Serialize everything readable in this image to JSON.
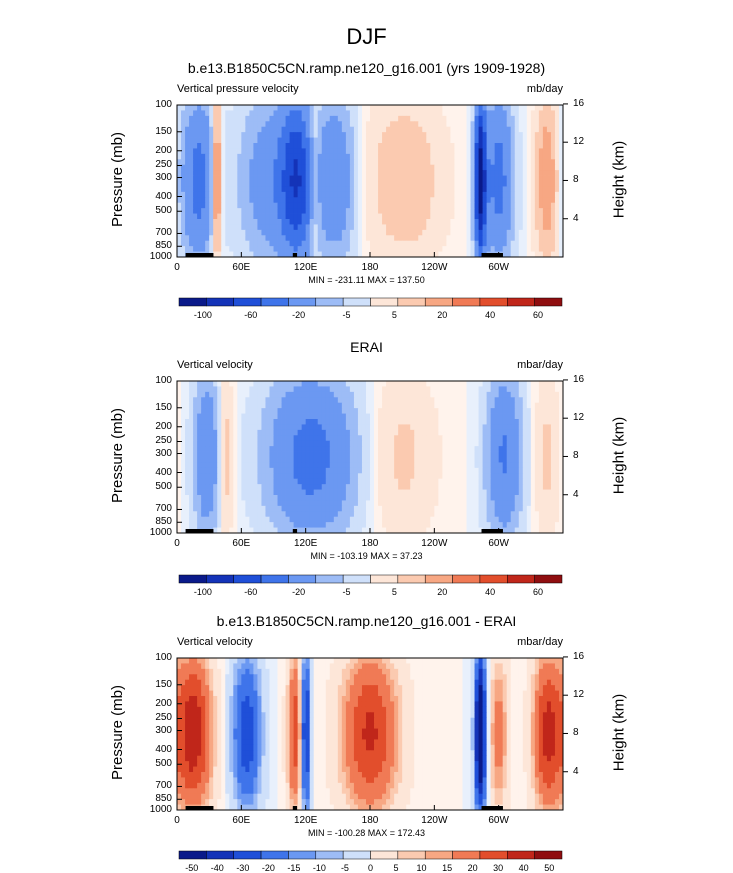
{
  "title": "DJF",
  "panels": [
    {
      "title": "b.e13.B1850C5CN.ramp.ne120_g16.001 (yrs 1909-1928)",
      "left_label": "Vertical pressure velocity",
      "right_label": "mb/day",
      "minmax_text": "MIN = -231.11  MAX = 137.50",
      "colorbar_labels": [
        "-100",
        "-60",
        "-20",
        "-5",
        "5",
        "20",
        "40",
        "60"
      ],
      "cmap": "full",
      "key": "model"
    },
    {
      "title": "ERAI",
      "left_label": "Vertical velocity",
      "right_label": "mbar/day",
      "minmax_text": "MIN = -103.19  MAX =  37.23",
      "colorbar_labels": [
        "-100",
        "-60",
        "-20",
        "-5",
        "5",
        "20",
        "40",
        "60"
      ],
      "cmap": "full",
      "key": "obs"
    },
    {
      "title": "b.e13.B1850C5CN.ramp.ne120_g16.001 - ERAI",
      "left_label": "Vertical velocity",
      "right_label": "mbar/day",
      "minmax_text": "MIN = -100.28  MAX = 172.43",
      "colorbar_labels": [
        "-50",
        "-40",
        "-30",
        "-20",
        "-15",
        "-10",
        "-5",
        "0",
        "5",
        "10",
        "15",
        "20",
        "30",
        "40",
        "50"
      ],
      "cmap": "diff",
      "key": "diff"
    }
  ],
  "axes": {
    "y_label": "Pressure (mb)",
    "y2_label": "Height (km)",
    "pressure_ticks": [
      "100",
      "150",
      "200",
      "250",
      "300",
      "400",
      "500",
      "700",
      "850",
      "1000"
    ],
    "height_ticks": [
      "16",
      "12",
      "8",
      "4"
    ],
    "x_ticks": [
      "0",
      "60E",
      "120E",
      "180",
      "120W",
      "60W"
    ]
  },
  "colors": {
    "blues": [
      "#0a1a8a",
      "#1433b8",
      "#1f4fd8",
      "#3f74ea",
      "#6b98f2",
      "#9dbcf6",
      "#cfe0fa"
    ],
    "reds": [
      "#fde6d8",
      "#fbcab0",
      "#f7a783",
      "#f07a55",
      "#e24e2c",
      "#c0261a",
      "#8f0e10"
    ],
    "land": "#000000"
  },
  "chart_data": [
    {
      "type": "heatmap",
      "title": "b.e13.B1850C5CN.ramp.ne120_g16.001 (yrs 1909-1928)",
      "variable": "Vertical pressure velocity",
      "units": "mb/day",
      "xlabel": "",
      "ylabel": "Pressure (mb)",
      "y2label": "Height (km)",
      "x_ticks": [
        "0",
        "60E",
        "120E",
        "180",
        "120W",
        "60W"
      ],
      "y_ticks": [
        100,
        150,
        200,
        250,
        300,
        400,
        500,
        700,
        850,
        1000
      ],
      "y_log": true,
      "min": -231.11,
      "max": 137.5,
      "levels": [
        -100,
        -80,
        -60,
        -40,
        -20,
        -10,
        -5,
        0,
        5,
        10,
        20,
        30,
        40,
        50,
        60
      ],
      "features": [
        {
          "lon": 20,
          "width": 18,
          "value": -40
        },
        {
          "lon": 37,
          "width": 5,
          "value": 40
        },
        {
          "lon": 85,
          "width": 30,
          "value": -25
        },
        {
          "lon": 112,
          "width": 18,
          "value": -60
        },
        {
          "lon": 128,
          "width": 6,
          "value": 20
        },
        {
          "lon": 148,
          "width": 20,
          "value": -30
        },
        {
          "lon": 212,
          "width": 40,
          "value": 15
        },
        {
          "lon": 283,
          "width": 6,
          "value": -90
        },
        {
          "lon": 300,
          "width": 15,
          "value": -40
        },
        {
          "lon": 345,
          "width": 12,
          "value": 25
        }
      ]
    },
    {
      "type": "heatmap",
      "title": "ERAI",
      "variable": "Vertical velocity",
      "units": "mbar/day",
      "xlabel": "",
      "ylabel": "Pressure (mb)",
      "y2label": "Height (km)",
      "x_ticks": [
        "0",
        "60E",
        "120E",
        "180",
        "120W",
        "60W"
      ],
      "y_ticks": [
        100,
        150,
        200,
        250,
        300,
        400,
        500,
        700,
        850,
        1000
      ],
      "y_log": true,
      "min": -103.19,
      "max": 37.23,
      "levels": [
        -100,
        -80,
        -60,
        -40,
        -20,
        -10,
        -5,
        0,
        5,
        10,
        20,
        30,
        40,
        50,
        60
      ],
      "features": [
        {
          "lon": 28,
          "width": 14,
          "value": -30
        },
        {
          "lon": 45,
          "width": 8,
          "value": 15
        },
        {
          "lon": 125,
          "width": 45,
          "value": -40
        },
        {
          "lon": 210,
          "width": 35,
          "value": 10
        },
        {
          "lon": 305,
          "width": 18,
          "value": -35
        },
        {
          "lon": 345,
          "width": 12,
          "value": 10
        }
      ]
    },
    {
      "type": "heatmap",
      "title": "b.e13.B1850C5CN.ramp.ne120_g16.001 - ERAI",
      "variable": "Vertical velocity",
      "units": "mbar/day",
      "xlabel": "",
      "ylabel": "Pressure (mb)",
      "y2label": "Height (km)",
      "x_ticks": [
        "0",
        "60E",
        "120E",
        "180",
        "120W",
        "60W"
      ],
      "y_ticks": [
        100,
        150,
        200,
        250,
        300,
        400,
        500,
        700,
        850,
        1000
      ],
      "y_log": true,
      "min": -100.28,
      "max": 172.43,
      "levels": [
        -50,
        -40,
        -30,
        -20,
        -15,
        -10,
        -5,
        0,
        5,
        10,
        15,
        20,
        30,
        40,
        50
      ],
      "features": [
        {
          "lon": 15,
          "width": 20,
          "value": 40
        },
        {
          "lon": 65,
          "width": 16,
          "value": -30
        },
        {
          "lon": 110,
          "width": 8,
          "value": 30
        },
        {
          "lon": 120,
          "width": 5,
          "value": -40
        },
        {
          "lon": 180,
          "width": 30,
          "value": 35
        },
        {
          "lon": 283,
          "width": 6,
          "value": -60
        },
        {
          "lon": 300,
          "width": 10,
          "value": 20
        },
        {
          "lon": 345,
          "width": 15,
          "value": 35
        }
      ]
    }
  ]
}
